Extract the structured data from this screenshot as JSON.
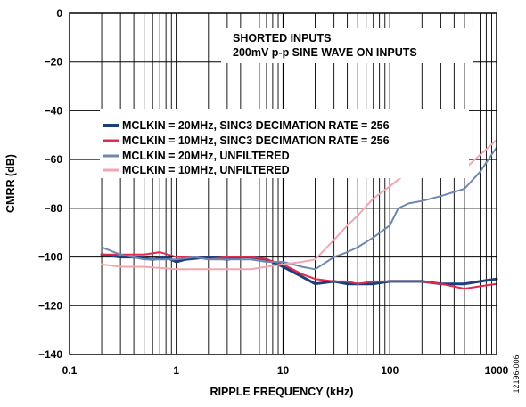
{
  "chart_data": {
    "type": "line",
    "xlabel": "RIPPLE FREQUENCY (kHz)",
    "ylabel": "CMRR (dB)",
    "x_scale": "log",
    "xlim": [
      0.1,
      1000
    ],
    "ylim": [
      -140,
      0
    ],
    "x_ticks": [
      {
        "value": 0.1,
        "label": "0.1"
      },
      {
        "value": 1,
        "label": "1"
      },
      {
        "value": 10,
        "label": "10"
      },
      {
        "value": 100,
        "label": "100"
      },
      {
        "value": 1000,
        "label": "1000"
      }
    ],
    "y_ticks": [
      {
        "value": 0,
        "label": "0"
      },
      {
        "value": -20,
        "label": "−20"
      },
      {
        "value": -40,
        "label": "−40"
      },
      {
        "value": -60,
        "label": "−60"
      },
      {
        "value": -80,
        "label": "−80"
      },
      {
        "value": -100,
        "label": "−100"
      },
      {
        "value": -120,
        "label": "−120"
      },
      {
        "value": -140,
        "label": "−140"
      }
    ],
    "grid": true,
    "legend_position": "center-left",
    "annotation_lines": [
      "SHORTED INPUTS",
      "200mV p-p SINE WAVE ON INPUTS"
    ],
    "figure_id": "12196-006",
    "series": [
      {
        "name": "MCLKIN = 20MHz, SINC3 DECIMATION RATE = 256",
        "color": "#1c3f7c",
        "width": 3,
        "x": [
          0.2,
          0.3,
          0.4,
          0.6,
          0.8,
          1.0,
          1.2,
          2.0,
          3.0,
          4.0,
          5.0,
          7.0,
          10.0,
          15.0,
          20.0,
          30.0,
          40.0,
          50.0,
          70.0,
          100.0,
          150.0,
          200.0,
          300.0,
          500.0,
          700.0,
          1000.0
        ],
        "y": [
          -99,
          -100,
          -100,
          -101,
          -100,
          -102,
          -101,
          -100,
          -101,
          -100,
          -100,
          -101,
          -104,
          -108,
          -111,
          -110,
          -111,
          -111,
          -111,
          -110,
          -110,
          -110,
          -111,
          -111,
          -110,
          -109
        ]
      },
      {
        "name": "MCLKIN = 10MHz, SINC3 DECIMATION RATE = 256",
        "color": "#e02a4e",
        "width": 2,
        "x": [
          0.2,
          0.3,
          0.5,
          0.7,
          1.0,
          1.5,
          2.0,
          3.0,
          5.0,
          7.0,
          10.0,
          15.0,
          20.0,
          30.0,
          40.0,
          50.0,
          70.0,
          100.0,
          150.0,
          200.0,
          300.0,
          500.0,
          700.0,
          1000.0
        ],
        "y": [
          -99,
          -99,
          -99,
          -98,
          -100,
          -100,
          -101,
          -100,
          -100,
          -101,
          -103,
          -107,
          -109,
          -110,
          -110,
          -111,
          -110,
          -110,
          -110,
          -110,
          -111,
          -113,
          -112,
          -111
        ]
      },
      {
        "name": "MCLKIN = 20MHz, UNFILTERED",
        "color": "#6e88b2",
        "width": 2,
        "x": [
          0.2,
          0.3,
          0.5,
          0.7,
          1.0,
          1.5,
          2.0,
          3.0,
          5.0,
          7.0,
          10.0,
          15.0,
          20.0,
          30.0,
          40.0,
          50.0,
          70.0,
          100.0,
          120.0,
          150.0,
          200.0,
          300.0,
          500.0,
          700.0,
          1000.0
        ],
        "y": [
          -96,
          -99,
          -101,
          -101,
          -101,
          -100,
          -101,
          -101,
          -101,
          -102,
          -102,
          -104,
          -105,
          -100,
          -98,
          -96,
          -92,
          -87,
          -80,
          -78,
          -77,
          -75,
          -72,
          -65,
          -55
        ]
      },
      {
        "name": "MCLKIN = 10MHz, UNFILTERED",
        "color": "#f3a6b0",
        "width": 2,
        "x": [
          0.2,
          0.3,
          0.5,
          1.0,
          2.0,
          5.0,
          10.0,
          15.0,
          20.0,
          30.0,
          40.0,
          50.0,
          70.0,
          100.0,
          130.0,
          150.0,
          200.0,
          300.0,
          500.0,
          700.0,
          1000.0
        ],
        "y": [
          -103,
          -104,
          -104,
          -105,
          -105,
          -105,
          -103,
          -102,
          -101,
          -93,
          -87,
          -83,
          -76,
          -71,
          -67,
          -66,
          -66,
          -65,
          -64,
          -58,
          -52
        ]
      }
    ]
  }
}
